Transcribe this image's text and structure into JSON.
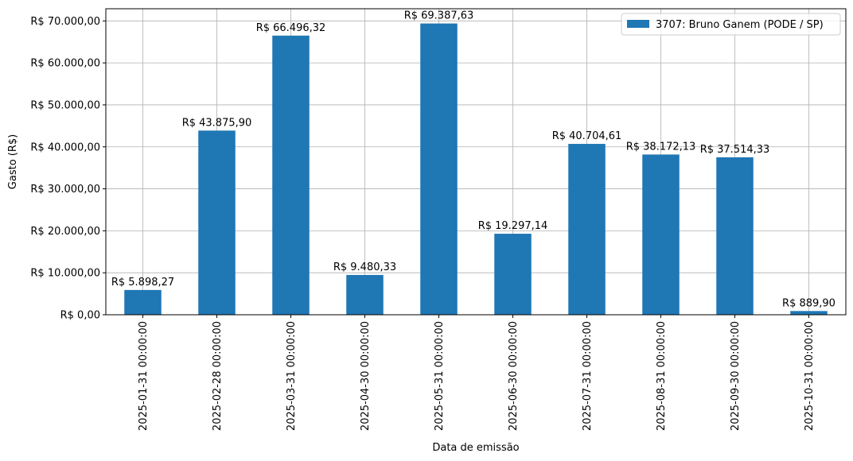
{
  "chart_data": {
    "type": "bar",
    "categories": [
      "2025-01-31 00:00:00",
      "2025-02-28 00:00:00",
      "2025-03-31 00:00:00",
      "2025-04-30 00:00:00",
      "2025-05-31 00:00:00",
      "2025-06-30 00:00:00",
      "2025-07-31 00:00:00",
      "2025-08-31 00:00:00",
      "2025-09-30 00:00:00",
      "2025-10-31 00:00:00"
    ],
    "series": [
      {
        "name": "3707: Bruno Ganem (PODE / SP)",
        "color": "#1f77b4",
        "values": [
          5898.27,
          43875.9,
          66496.32,
          9480.33,
          69387.63,
          19297.14,
          40704.61,
          38172.13,
          37514.33,
          889.9
        ],
        "labels": [
          "R$ 5.898,27",
          "R$ 43.875,90",
          "R$ 66.496,32",
          "R$ 9.480,33",
          "R$ 69.387,63",
          "R$ 19.297,14",
          "R$ 40.704,61",
          "R$ 38.172,13",
          "R$ 37.514,33",
          "R$ 889,90"
        ]
      }
    ],
    "xlabel": "Data de emissão",
    "ylabel": "Gasto (R$)",
    "ylim": [
      0,
      72900
    ],
    "yticks": [
      0,
      10000,
      20000,
      30000,
      40000,
      50000,
      60000,
      70000
    ],
    "ytick_labels": [
      "R$ 0,00",
      "R$ 10.000,00",
      "R$ 20.000,00",
      "R$ 30.000,00",
      "R$ 40.000,00",
      "R$ 50.000,00",
      "R$ 60.000,00",
      "R$ 70.000,00"
    ],
    "grid": true,
    "legend_position": "top-right",
    "colors": {
      "grid": "#b0b0b0",
      "axis": "#000000"
    }
  }
}
